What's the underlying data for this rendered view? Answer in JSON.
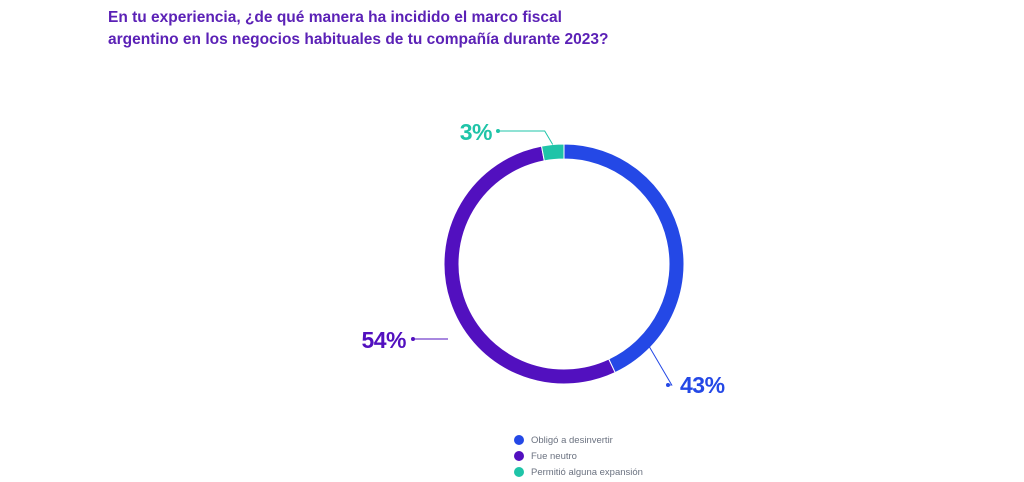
{
  "title_lines": [
    "En tu experiencia, ¿de qué manera ha incidido el marco fiscal",
    "argentino en los negocios habituales de tu compañía durante 2023?"
  ],
  "chart_data": {
    "type": "pie",
    "variant": "donut",
    "title": "En tu experiencia, ¿de qué manera ha incidido el marco fiscal argentino en los negocios habituales de tu compañía durante 2023?",
    "slices": [
      {
        "name": "Obligó a desinvertir",
        "value": 43,
        "label": "43%",
        "color": "#2448e6"
      },
      {
        "name": "Fue neutro",
        "value": 54,
        "label": "54%",
        "color": "#5210bf"
      },
      {
        "name": "Permitió alguna expansión",
        "value": 3,
        "label": "3%",
        "color": "#1fc4a8"
      }
    ],
    "legend_position": "bottom"
  }
}
